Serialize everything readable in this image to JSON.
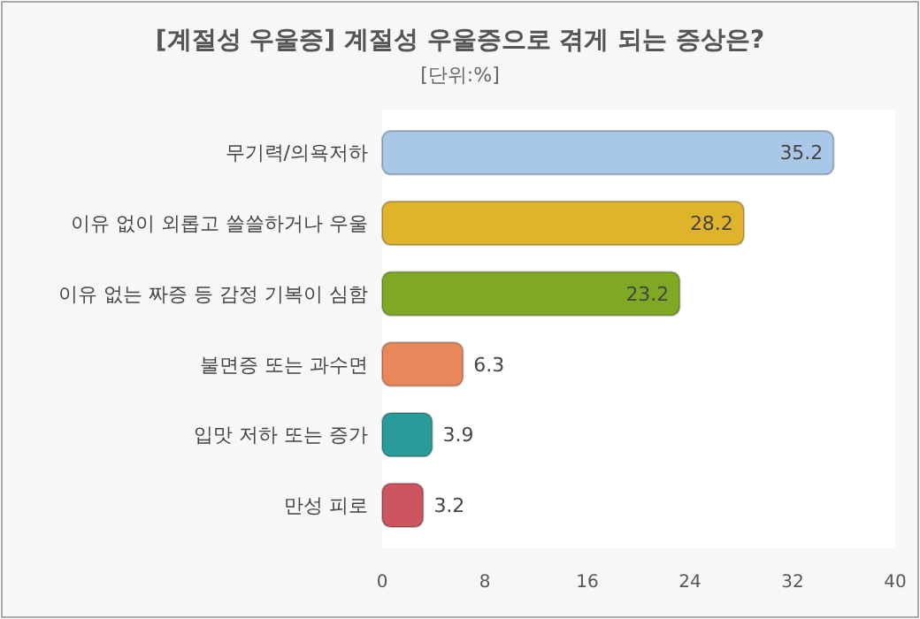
{
  "chart_data": {
    "type": "bar",
    "orientation": "horizontal",
    "title": "[계절성 우울증] 계절성 우울증으로 겪게 되는 증상은?",
    "subtitle": "[단위:%]",
    "categories": [
      "무기력/의욕저하",
      "이유 없이 외롭고 쓸쓸하거나 우울",
      "이유 없는 짜증 등 감정 기복이 심함",
      "불면증 또는 과수면",
      "입맛 저하 또는 증가",
      "만성 피로"
    ],
    "values": [
      35.2,
      28.2,
      23.2,
      6.3,
      3.9,
      3.2
    ],
    "colors": [
      "#a9c8e8",
      "#e0b42a",
      "#7fa823",
      "#e8885a",
      "#2b9a9a",
      "#cc5560"
    ],
    "xlim": [
      0,
      40
    ],
    "xticks": [
      0,
      8,
      16,
      24,
      32,
      40
    ],
    "data_labels": true
  }
}
